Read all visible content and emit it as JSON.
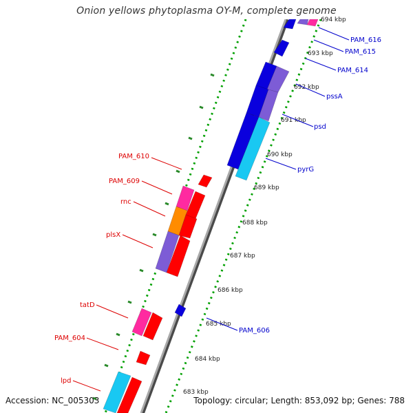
{
  "title": "Onion yellows phytoplasma OY-M, complete genome",
  "footer": {
    "accession": "Accession: NC_005303",
    "topology": "Topology: circular; Length: 853,092 bp; Genes: 788"
  },
  "colors": {
    "blue_gene": "#0a00dd",
    "purple_gene": "#7d5cd6",
    "cyan_gene": "#19c8f2",
    "red_gene": "#ff0000",
    "pink_gene": "#ff2aa0",
    "orange_gene": "#ff8c00",
    "backbone": "#8a8a8a",
    "gc_dots": "#00a000",
    "left_label": "#dd0000",
    "right_label": "#0000cc"
  },
  "kbp_labels": [
    "683 kbp",
    "684 kbp",
    "685 kbp",
    "686 kbp",
    "687 kbp",
    "688 kbp",
    "689 kbp",
    "690 kbp",
    "691 kbp",
    "692 kbp",
    "693 kbp",
    "694 kbp"
  ],
  "left_genes": [
    "lpd",
    "PAM_604",
    "tatD",
    "plsX",
    "rnc",
    "PAM_609",
    "PAM_610"
  ],
  "right_genes": [
    "PAM_606",
    "pyrG",
    "psd",
    "pssA",
    "PAM_614",
    "PAM_615",
    "PAM_616"
  ]
}
